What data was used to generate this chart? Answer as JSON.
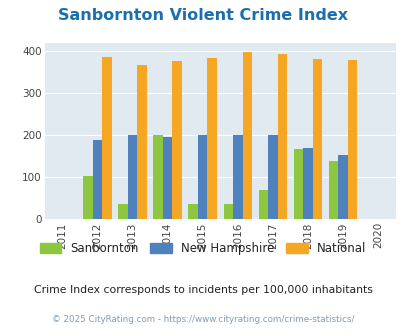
{
  "title": "Sanbornton Violent Crime Index",
  "years": [
    2012,
    2013,
    2014,
    2015,
    2016,
    2017,
    2018,
    2019
  ],
  "sanbornton": [
    103,
    37,
    202,
    37,
    37,
    69,
    168,
    138
  ],
  "new_hampshire": [
    188,
    202,
    197,
    200,
    200,
    200,
    171,
    153
  ],
  "national": [
    387,
    368,
    378,
    385,
    398,
    394,
    381,
    379
  ],
  "color_sanbornton": "#8dc63f",
  "color_nh": "#4f81bd",
  "color_national": "#f5a623",
  "color_title": "#1a6faf",
  "color_bg_chart": "#e0eaf0",
  "color_bg_fig": "#ffffff",
  "color_subtitle": "#222222",
  "color_copyright": "#7f9db9",
  "bar_width": 0.27,
  "xlim": [
    2010.5,
    2020.5
  ],
  "ylim": [
    0,
    420
  ],
  "yticks": [
    0,
    100,
    200,
    300,
    400
  ],
  "xticks": [
    2011,
    2012,
    2013,
    2014,
    2015,
    2016,
    2017,
    2018,
    2019,
    2020
  ],
  "subtitle": "Crime Index corresponds to incidents per 100,000 inhabitants",
  "copyright": "© 2025 CityRating.com - https://www.cityrating.com/crime-statistics/",
  "legend_labels": [
    "Sanbornton",
    "New Hampshire",
    "National"
  ]
}
